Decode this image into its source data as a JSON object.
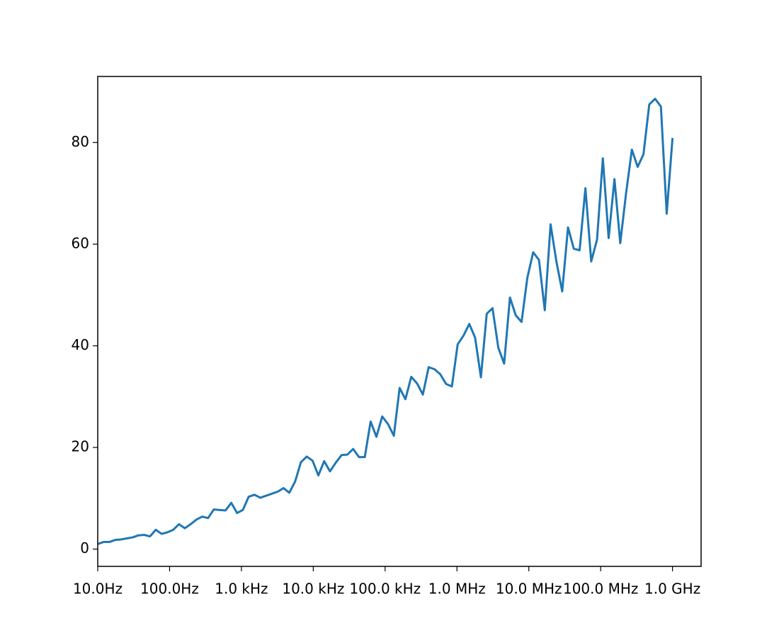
{
  "chart_data": {
    "type": "line",
    "xscale": "log",
    "grid": false,
    "x": [
      10.0,
      12.045,
      14.508,
      17.475,
      21.049,
      25.354,
      30.539,
      36.785,
      44.306,
      53.37,
      64.28,
      77.43,
      93.26,
      112.33,
      135.3,
      162.98,
      196.3,
      236.45,
      284.8,
      343.05,
      413.2,
      497.7,
      599.48,
      722.08,
      869.75,
      1047.6,
      1261.9,
      1519.9,
      1830.8,
      2205.1,
      2656.1,
      3199.3,
      3853.5,
      4641.6,
      5590.8,
      6734.2,
      8111.3,
      9770.1,
      11768.0,
      14175.0,
      17074.0,
      20565.0,
      24771.0,
      29836.0,
      35938.0,
      43288.0,
      52140.0,
      62803.0,
      75646.0,
      91116.0,
      109750.0,
      132190.0,
      159230.0,
      191790.0,
      231010.0,
      278260.0,
      335160.0,
      403700.0,
      486260.0,
      585700.0,
      705480.0,
      849750.0,
      1023500.0,
      1232800.0,
      1485000.0,
      1788600.0,
      2154400.0,
      2595000.0,
      3125700.0,
      3764900.0,
      4534900.0,
      5462300.0,
      6579300.0,
      7924800.0,
      9545500.0,
      11498000.0,
      13849000.0,
      16681000.0,
      20092000.0,
      24201000.0,
      29150000.0,
      35112000.0,
      42292000.0,
      50941000.0,
      61359000.0,
      73907000.0,
      89022000.0,
      107230000.0,
      129150000.0,
      155560000.0,
      187380000.0,
      225700000.0,
      271850000.0,
      327450000.0,
      394420000.0,
      475080000.0,
      572240000.0,
      689260000.0,
      830220000.0,
      1000000000.0
    ],
    "series": [
      {
        "color": "#1f77b4",
        "values": [
          1.0,
          1.4,
          1.4,
          1.8,
          1.9,
          2.1,
          2.3,
          2.7,
          2.8,
          2.5,
          3.8,
          3.0,
          3.3,
          3.8,
          4.9,
          4.1,
          4.9,
          5.8,
          6.4,
          6.1,
          7.8,
          7.7,
          7.6,
          9.1,
          7.1,
          7.7,
          10.3,
          10.7,
          10.1,
          10.5,
          10.9,
          11.3,
          12.0,
          11.1,
          13.3,
          17.1,
          18.2,
          17.4,
          14.5,
          17.3,
          15.3,
          17.0,
          18.5,
          18.6,
          19.7,
          18.1,
          18.1,
          25.1,
          22.1,
          26.1,
          24.6,
          22.3,
          31.7,
          29.5,
          33.9,
          32.6,
          30.4,
          35.8,
          35.4,
          34.4,
          32.5,
          32.0,
          40.3,
          42.0,
          44.3,
          41.6,
          33.8,
          46.3,
          47.4,
          39.6,
          36.5,
          49.5,
          46.0,
          44.7,
          53.4,
          58.4,
          56.9,
          47.0,
          63.9,
          56.6,
          50.7,
          63.3,
          59.1,
          58.8,
          71.0,
          56.6,
          60.9,
          76.9,
          61.2,
          72.8,
          60.2,
          70.0,
          78.6,
          75.2,
          77.7,
          87.5,
          88.6,
          87.1,
          66.0,
          80.9
        ]
      }
    ],
    "xlim": [
      10,
      2500000000.0
    ],
    "xticks": [
      {
        "value": 10,
        "label": "10.0Hz"
      },
      {
        "value": 100,
        "label": "100.0Hz"
      },
      {
        "value": 1000,
        "label": "1.0 kHz"
      },
      {
        "value": 10000,
        "label": "10.0 kHz"
      },
      {
        "value": 100000,
        "label": "100.0 kHz"
      },
      {
        "value": 1000000,
        "label": "1.0 MHz"
      },
      {
        "value": 10000000,
        "label": "10.0 MHz"
      },
      {
        "value": 100000000,
        "label": "100.0 MHz"
      },
      {
        "value": 1000000000,
        "label": "1.0 GHz"
      }
    ],
    "ylim": [
      -3.4,
      93.0
    ],
    "yticks": [
      0,
      20,
      40,
      60,
      80
    ]
  }
}
